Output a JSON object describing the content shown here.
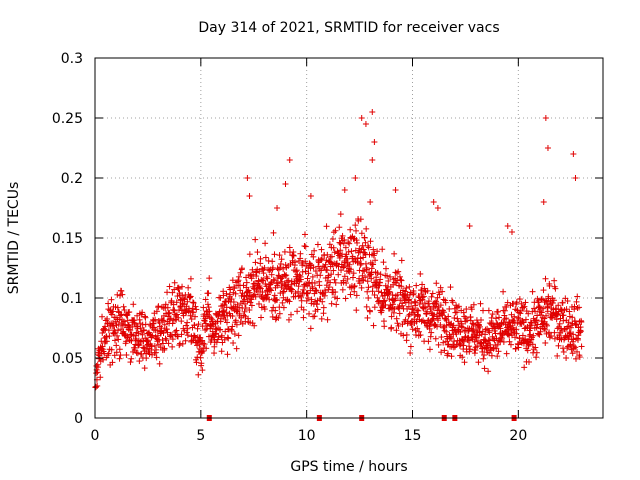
{
  "chart_data": {
    "type": "scatter",
    "title": "Day 314 of 2021, SRMTID for receiver vacs",
    "xlabel": "GPS time / hours",
    "ylabel": "SRMTID / TECUs",
    "xlim": [
      0,
      24
    ],
    "ylim": [
      0,
      0.3
    ],
    "xticks": [
      0,
      5,
      10,
      15,
      20
    ],
    "xtick_labels": [
      "0",
      "5",
      "10",
      "15",
      "20"
    ],
    "yticks": [
      0,
      0.05,
      0.1,
      0.15,
      0.2,
      0.25,
      0.3
    ],
    "ytick_labels": [
      "0",
      "0.05",
      "0.1",
      "0.15",
      "0.2",
      "0.25",
      "0.3"
    ],
    "grid": true,
    "marker": "+",
    "color": "#e00000",
    "trend": [
      [
        0.0,
        0.028
      ],
      [
        0.3,
        0.06
      ],
      [
        0.6,
        0.07
      ],
      [
        1.0,
        0.08
      ],
      [
        1.5,
        0.075
      ],
      [
        2.0,
        0.07
      ],
      [
        2.5,
        0.068
      ],
      [
        3.0,
        0.07
      ],
      [
        3.5,
        0.08
      ],
      [
        4.0,
        0.088
      ],
      [
        4.5,
        0.085
      ],
      [
        5.0,
        0.05
      ],
      [
        5.3,
        0.09
      ],
      [
        5.6,
        0.07
      ],
      [
        6.0,
        0.085
      ],
      [
        6.5,
        0.095
      ],
      [
        7.0,
        0.1
      ],
      [
        7.5,
        0.11
      ],
      [
        8.0,
        0.115
      ],
      [
        8.5,
        0.11
      ],
      [
        9.0,
        0.11
      ],
      [
        9.5,
        0.11
      ],
      [
        10.0,
        0.115
      ],
      [
        10.5,
        0.11
      ],
      [
        11.0,
        0.12
      ],
      [
        11.5,
        0.13
      ],
      [
        12.0,
        0.13
      ],
      [
        12.5,
        0.135
      ],
      [
        13.0,
        0.12
      ],
      [
        13.5,
        0.11
      ],
      [
        14.0,
        0.1
      ],
      [
        14.5,
        0.095
      ],
      [
        15.0,
        0.09
      ],
      [
        15.5,
        0.09
      ],
      [
        16.0,
        0.085
      ],
      [
        16.5,
        0.085
      ],
      [
        17.0,
        0.075
      ],
      [
        17.5,
        0.075
      ],
      [
        18.0,
        0.07
      ],
      [
        18.5,
        0.065
      ],
      [
        19.0,
        0.07
      ],
      [
        19.5,
        0.075
      ],
      [
        20.0,
        0.075
      ],
      [
        20.5,
        0.072
      ],
      [
        21.0,
        0.08
      ],
      [
        21.5,
        0.09
      ],
      [
        22.0,
        0.08
      ],
      [
        22.5,
        0.075
      ],
      [
        23.0,
        0.072
      ]
    ],
    "outliers": [
      [
        12.6,
        0.25
      ],
      [
        12.8,
        0.245
      ],
      [
        13.1,
        0.255
      ],
      [
        13.2,
        0.23
      ],
      [
        13.1,
        0.215
      ],
      [
        12.3,
        0.2
      ],
      [
        11.8,
        0.19
      ],
      [
        9.2,
        0.215
      ],
      [
        9.0,
        0.195
      ],
      [
        7.2,
        0.2
      ],
      [
        7.3,
        0.185
      ],
      [
        21.3,
        0.25
      ],
      [
        21.4,
        0.225
      ],
      [
        22.6,
        0.22
      ],
      [
        22.7,
        0.2
      ],
      [
        21.2,
        0.18
      ],
      [
        14.2,
        0.19
      ],
      [
        13.0,
        0.18
      ],
      [
        8.6,
        0.175
      ],
      [
        10.2,
        0.185
      ],
      [
        16.0,
        0.18
      ],
      [
        16.2,
        0.175
      ],
      [
        19.5,
        0.16
      ],
      [
        19.7,
        0.155
      ],
      [
        17.7,
        0.16
      ]
    ],
    "zero_markers": [
      5.4,
      10.6,
      12.6,
      16.5,
      17.0,
      19.8
    ]
  }
}
